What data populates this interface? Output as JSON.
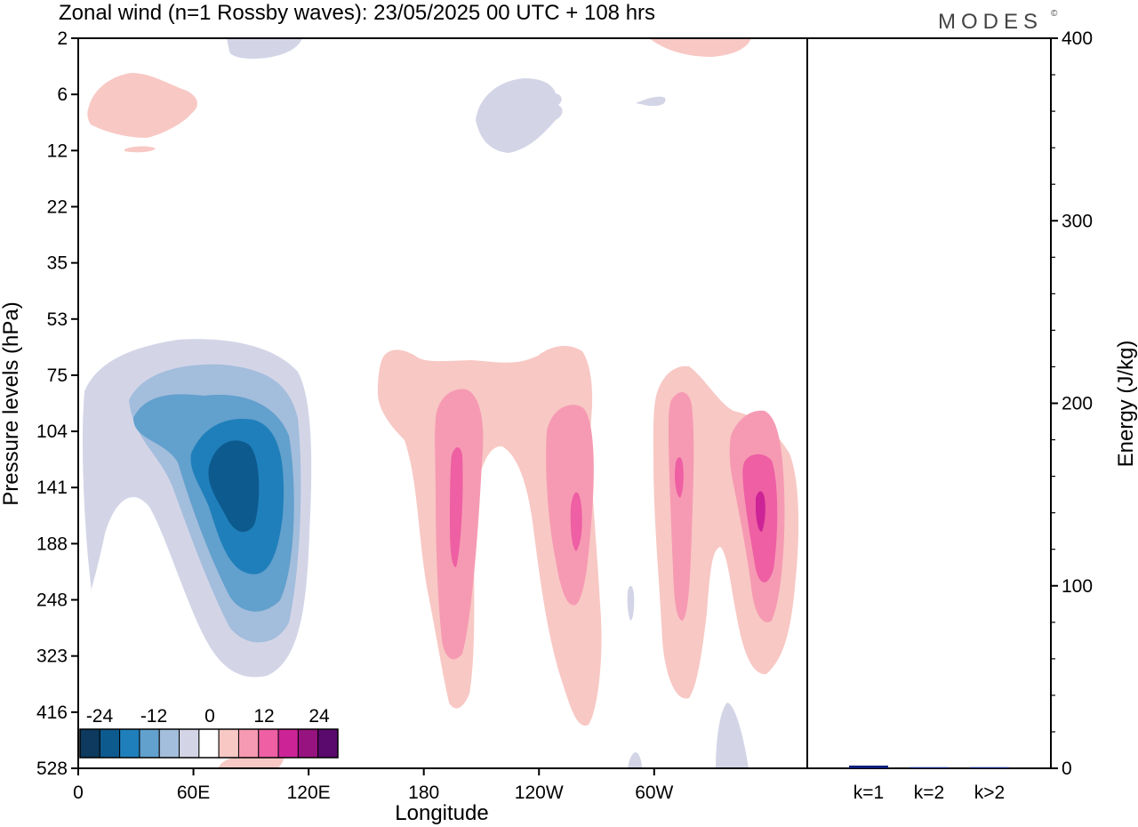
{
  "title": "Zonal wind (n=1 Rossby waves):  23/05/2025  00 UTC  + 108 hrs",
  "brand": {
    "name": "MODES",
    "mark": "©"
  },
  "colors": {
    "frame": "#000000",
    "bar_fill": "#0b1f7a",
    "levels": [
      "#0d3a5e",
      "#0d5a8e",
      "#1f7fba",
      "#62a0cd",
      "#a3bddc",
      "#d3d5e7",
      "#ffffff",
      "#f8c8c4",
      "#f69ab3",
      "#ee5fa3",
      "#cc2497",
      "#97137f",
      "#5a0a6c"
    ]
  },
  "chart_data": [
    {
      "type": "heatmap",
      "title": "Zonal wind (n=1 Rossby waves):  23/05/2025  00 UTC  + 108 hrs",
      "xlabel": "Longitude",
      "ylabel": "Pressure levels (hPa)",
      "x_ticks": [
        "0",
        "60E",
        "120E",
        "180",
        "120W",
        "60W"
      ],
      "x_tick_positions_deg": [
        0,
        60,
        120,
        180,
        240,
        300
      ],
      "xlim_deg": [
        0,
        360
      ],
      "y_ticks": [
        "2",
        "6",
        "12",
        "22",
        "35",
        "53",
        "75",
        "104",
        "141",
        "188",
        "248",
        "323",
        "416",
        "528"
      ],
      "y_scale": "pressure levels (top = 2 hPa, bottom = 528 hPa)",
      "colorbar": {
        "tick_labels": [
          "-24",
          "-12",
          "0",
          "12",
          "24"
        ],
        "levels": [
          -28,
          -24,
          -20,
          -16,
          -12,
          -8,
          -4,
          4,
          8,
          12,
          16,
          20,
          24,
          28
        ],
        "placement": "bottom-left"
      },
      "features": [
        {
          "sign": "negative",
          "center_lon_deg": 80,
          "center_hPa": 141,
          "min_value": -24
        },
        {
          "sign": "positive",
          "center_lon_deg": 185,
          "center_hPa": 141,
          "max_value": 12
        },
        {
          "sign": "positive",
          "center_lon_deg": 237,
          "center_hPa": 170,
          "max_value": 12
        },
        {
          "sign": "positive",
          "center_lon_deg": 295,
          "center_hPa": 120,
          "max_value": 12
        },
        {
          "sign": "positive",
          "center_lon_deg": 335,
          "center_hPa": 160,
          "max_value": 20
        },
        {
          "sign": "positive",
          "center_lon_deg": 30,
          "center_hPa": 6,
          "max_value": 4
        },
        {
          "sign": "negative",
          "center_lon_deg": 205,
          "center_hPa": 8,
          "min_value": -4
        }
      ],
      "grid": false
    },
    {
      "type": "bar",
      "categories": [
        "k=1",
        "k=2",
        "k>2"
      ],
      "values": [
        1.5,
        0.6,
        0.6
      ],
      "ylabel": "Energy (J/kg)",
      "y_ticks": [
        "0",
        "100",
        "200",
        "300",
        "400"
      ],
      "ylim": [
        0,
        400
      ],
      "y_axis_side": "right"
    }
  ]
}
